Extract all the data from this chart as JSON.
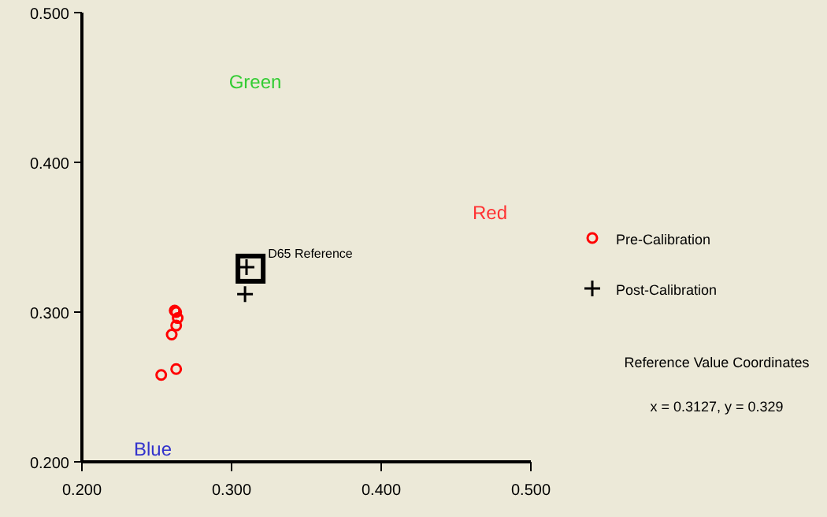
{
  "chart_data": {
    "type": "scatter",
    "xlim": [
      0.2,
      0.5
    ],
    "ylim": [
      0.2,
      0.5
    ],
    "xticks": [
      {
        "value": 0.2,
        "label": "0.200"
      },
      {
        "value": 0.3,
        "label": "0.300"
      },
      {
        "value": 0.4,
        "label": "0.400"
      },
      {
        "value": 0.5,
        "label": "0.500"
      }
    ],
    "yticks": [
      {
        "value": 0.2,
        "label": "0.200"
      },
      {
        "value": 0.3,
        "label": "0.300"
      },
      {
        "value": 0.4,
        "label": "0.400"
      },
      {
        "value": 0.5,
        "label": "0.500"
      }
    ],
    "grid": false,
    "legend": "right",
    "series": [
      {
        "name": "Pre-Calibration",
        "color": "#ff0000",
        "marker": "circle",
        "x": [
          0.262,
          0.263,
          0.264,
          0.263,
          0.26,
          0.263,
          0.253
        ],
        "values": [
          0.301,
          0.3,
          0.296,
          0.291,
          0.285,
          0.262,
          0.258
        ]
      },
      {
        "color": "#000000",
        "marker": "square",
        "x": [
          0.3127
        ],
        "values": [
          0.329
        ]
      },
      {
        "name": "Post-Calibration",
        "color": "#000000",
        "marker": "cross",
        "x": [
          0.309,
          0.31
        ],
        "values": [
          0.312,
          0.33
        ]
      }
    ],
    "annotations": [
      "Green",
      "Red",
      "Blue",
      {
        "text": "D65 Reference",
        "x": 0.3127,
        "y": 0.329
      },
      "Reference Value Coordinates",
      "x = 0.3127, y = 0.329"
    ]
  }
}
